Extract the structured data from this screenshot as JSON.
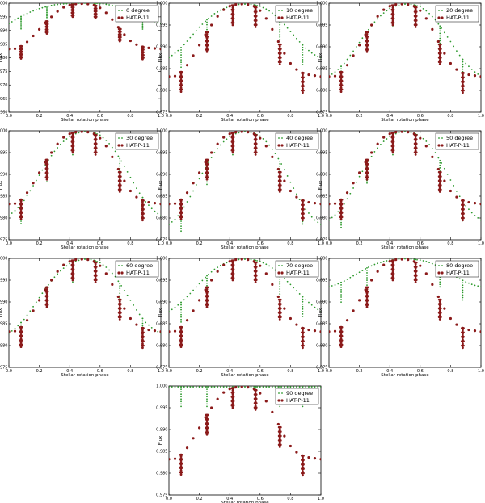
{
  "chart_data": {
    "type": "scatter",
    "xlabel": "Stellar rotation phase",
    "ylabel": "Flux",
    "xlim": [
      0.0,
      1.0
    ],
    "ylim": [
      0.975,
      1.0
    ],
    "xticks": [
      "0.0",
      "0.2",
      "0.4",
      "0.6",
      "0.8",
      "1.0"
    ],
    "yticks": [
      "0.975",
      "0.980",
      "0.985",
      "0.990",
      "0.995",
      "1.000"
    ],
    "legend_position": "top-right",
    "observed_series_name": "HAT-P-11",
    "observed_color": "#8b1a1a",
    "model_color": "#2e9a2e",
    "observed_curve": {
      "x": [
        0.0,
        0.04,
        0.08,
        0.12,
        0.16,
        0.2,
        0.24,
        0.28,
        0.32,
        0.36,
        0.4,
        0.44,
        0.48,
        0.52,
        0.56,
        0.6,
        0.64,
        0.68,
        0.72,
        0.76,
        0.8,
        0.84,
        0.88,
        0.92,
        0.96,
        1.0
      ],
      "y": [
        0.9832,
        0.9833,
        0.9842,
        0.9858,
        0.988,
        0.9904,
        0.9928,
        0.995,
        0.997,
        0.9985,
        0.9993,
        0.9997,
        0.9998,
        0.9997,
        0.9993,
        0.9983,
        0.9965,
        0.994,
        0.9912,
        0.9885,
        0.9862,
        0.9848,
        0.984,
        0.9836,
        0.9834,
        0.9832
      ]
    },
    "transit_phases": [
      0.08,
      0.25,
      0.42,
      0.57,
      0.73,
      0.88
    ],
    "panels": [
      {
        "label": "0 degree",
        "model_x": [
          0.0,
          0.05,
          0.1,
          0.15,
          0.2,
          0.25,
          0.3,
          0.35,
          0.4,
          0.45,
          0.5,
          0.55,
          0.6,
          0.65,
          0.7,
          0.75,
          0.8,
          0.85,
          0.9,
          0.95,
          1.0
        ],
        "model_y": [
          0.9925,
          0.9942,
          0.9957,
          0.997,
          0.998,
          0.9988,
          0.9994,
          0.9997,
          0.9999,
          1.0,
          1.0,
          1.0,
          0.9999,
          0.9995,
          0.999,
          0.998,
          0.997,
          0.9958,
          0.9945,
          0.9935,
          0.9925
        ],
        "ylim": [
          0.96,
          1.0
        ],
        "yticks": [
          "0.960",
          "0.965",
          "0.970",
          "0.975",
          "0.980",
          "0.985",
          "0.990",
          "0.995",
          "1.000"
        ]
      },
      {
        "label": "10 degree",
        "model_x": [
          0.0,
          0.05,
          0.1,
          0.15,
          0.2,
          0.25,
          0.3,
          0.35,
          0.4,
          0.45,
          0.5,
          0.55,
          0.6,
          0.65,
          0.7,
          0.75,
          0.8,
          0.85,
          0.9,
          0.95,
          1.0
        ],
        "model_y": [
          0.9875,
          0.9888,
          0.9905,
          0.9925,
          0.9945,
          0.9962,
          0.9976,
          0.9986,
          0.9993,
          0.9997,
          0.9998,
          0.9997,
          0.9993,
          0.9985,
          0.9972,
          0.9955,
          0.9935,
          0.9915,
          0.9897,
          0.9883,
          0.9875
        ]
      },
      {
        "label": "20 degree",
        "model_x": [
          0.0,
          0.05,
          0.1,
          0.15,
          0.2,
          0.25,
          0.3,
          0.35,
          0.4,
          0.45,
          0.5,
          0.55,
          0.6,
          0.65,
          0.7,
          0.75,
          0.8,
          0.85,
          0.9,
          0.95,
          1.0
        ],
        "model_y": [
          0.9832,
          0.9845,
          0.9862,
          0.9885,
          0.991,
          0.9935,
          0.9957,
          0.9975,
          0.9988,
          0.9995,
          0.9998,
          0.9997,
          0.9992,
          0.998,
          0.9962,
          0.9938,
          0.9912,
          0.9885,
          0.9862,
          0.9845,
          0.9832
        ]
      },
      {
        "label": "30 degree",
        "model_x": [
          0.0,
          0.05,
          0.1,
          0.15,
          0.2,
          0.25,
          0.3,
          0.35,
          0.4,
          0.45,
          0.5,
          0.55,
          0.6,
          0.65,
          0.7,
          0.75,
          0.8,
          0.85,
          0.9,
          0.95,
          1.0
        ],
        "model_y": [
          0.9805,
          0.982,
          0.984,
          0.9868,
          0.9898,
          0.9928,
          0.9953,
          0.9973,
          0.9987,
          0.9995,
          0.9998,
          0.9997,
          0.999,
          0.9975,
          0.9953,
          0.9925,
          0.9893,
          0.9862,
          0.9837,
          0.9818,
          0.9805
        ]
      },
      {
        "label": "40 degree",
        "model_x": [
          0.0,
          0.05,
          0.1,
          0.15,
          0.2,
          0.25,
          0.3,
          0.35,
          0.4,
          0.45,
          0.5,
          0.55,
          0.6,
          0.65,
          0.7,
          0.75,
          0.8,
          0.85,
          0.9,
          0.95,
          1.0
        ],
        "model_y": [
          0.9785,
          0.98,
          0.9825,
          0.9855,
          0.989,
          0.9922,
          0.995,
          0.9972,
          0.9987,
          0.9995,
          0.9998,
          0.9996,
          0.9988,
          0.9972,
          0.9948,
          0.9918,
          0.9882,
          0.9848,
          0.982,
          0.9798,
          0.9785
        ]
      },
      {
        "label": "50 degree",
        "model_x": [
          0.0,
          0.05,
          0.1,
          0.15,
          0.2,
          0.25,
          0.3,
          0.35,
          0.4,
          0.45,
          0.5,
          0.55,
          0.6,
          0.65,
          0.7,
          0.75,
          0.8,
          0.85,
          0.9,
          0.95,
          1.0
        ],
        "model_y": [
          0.9795,
          0.981,
          0.9832,
          0.9862,
          0.9895,
          0.9925,
          0.9952,
          0.9973,
          0.9987,
          0.9995,
          0.9998,
          0.9996,
          0.9988,
          0.9973,
          0.995,
          0.992,
          0.9887,
          0.9855,
          0.9828,
          0.9808,
          0.9795
        ]
      },
      {
        "label": "60 degree",
        "model_x": [
          0.0,
          0.05,
          0.1,
          0.15,
          0.2,
          0.25,
          0.3,
          0.35,
          0.4,
          0.45,
          0.5,
          0.55,
          0.6,
          0.65,
          0.7,
          0.75,
          0.8,
          0.85,
          0.9,
          0.95,
          1.0
        ],
        "model_y": [
          0.9828,
          0.9842,
          0.986,
          0.9884,
          0.991,
          0.9935,
          0.9957,
          0.9975,
          0.9988,
          0.9995,
          0.9998,
          0.9997,
          0.999,
          0.9977,
          0.9958,
          0.9932,
          0.9904,
          0.9876,
          0.9853,
          0.9838,
          0.9828
        ]
      },
      {
        "label": "70 degree",
        "model_x": [
          0.0,
          0.05,
          0.1,
          0.15,
          0.2,
          0.25,
          0.3,
          0.35,
          0.4,
          0.45,
          0.5,
          0.55,
          0.6,
          0.65,
          0.7,
          0.75,
          0.8,
          0.85,
          0.9,
          0.95,
          1.0
        ],
        "model_y": [
          0.9878,
          0.989,
          0.9905,
          0.9923,
          0.9942,
          0.996,
          0.9975,
          0.9986,
          0.9993,
          0.9997,
          0.9998,
          0.9997,
          0.9993,
          0.9985,
          0.9973,
          0.9957,
          0.994,
          0.9922,
          0.9905,
          0.989,
          0.9878
        ]
      },
      {
        "label": "80 degree",
        "model_x": [
          0.0,
          0.05,
          0.1,
          0.15,
          0.2,
          0.25,
          0.3,
          0.35,
          0.4,
          0.45,
          0.5,
          0.55,
          0.6,
          0.65,
          0.7,
          0.75,
          0.8,
          0.85,
          0.9,
          0.95,
          1.0
        ],
        "model_y": [
          0.9935,
          0.994,
          0.9948,
          0.9958,
          0.9968,
          0.9978,
          0.9986,
          0.9992,
          0.9996,
          0.9998,
          0.9999,
          0.9998,
          0.9996,
          0.9992,
          0.9985,
          0.9976,
          0.9966,
          0.9955,
          0.9946,
          0.9939,
          0.9935
        ]
      },
      {
        "label": "90 degree",
        "model_x": [
          0.0,
          0.05,
          0.1,
          0.15,
          0.2,
          0.25,
          0.3,
          0.35,
          0.4,
          0.45,
          0.5,
          0.55,
          0.6,
          0.65,
          0.7,
          0.75,
          0.8,
          0.85,
          0.9,
          0.95,
          1.0
        ],
        "model_y": [
          0.9998,
          0.9998,
          0.9998,
          0.9998,
          0.9998,
          0.9998,
          0.9998,
          0.9998,
          0.9998,
          0.9998,
          0.9998,
          0.9998,
          0.9998,
          0.9998,
          0.9998,
          0.9998,
          0.9998,
          0.9998,
          0.9998,
          0.9998,
          0.9998
        ]
      }
    ]
  }
}
